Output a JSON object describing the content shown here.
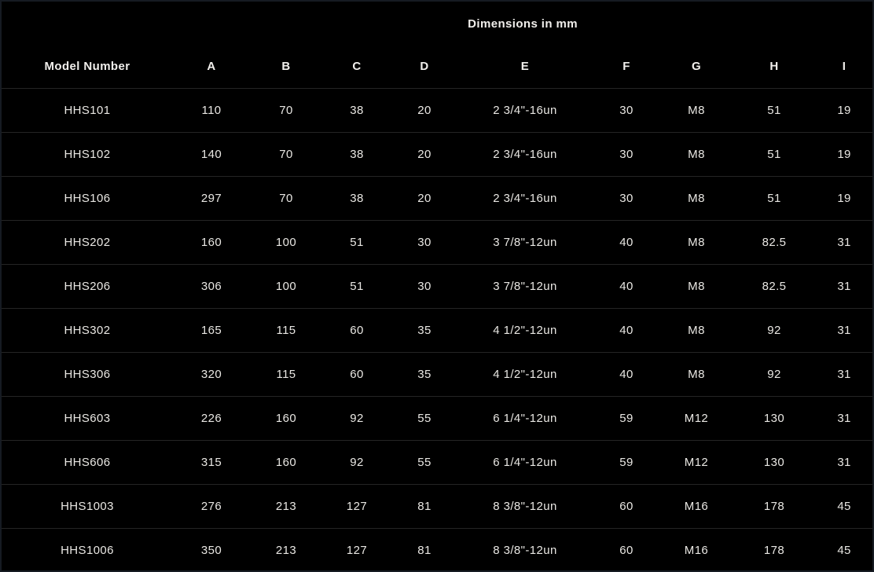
{
  "title": "Dimensions in mm",
  "table": {
    "columns": [
      "Model Number",
      "A",
      "B",
      "C",
      "D",
      "E",
      "F",
      "G",
      "H",
      "I"
    ],
    "rows": [
      [
        "HHS101",
        "110",
        "70",
        "38",
        "20",
        "2 3/4\"-16un",
        "30",
        "M8",
        "51",
        "19"
      ],
      [
        "HHS102",
        "140",
        "70",
        "38",
        "20",
        "2 3/4\"-16un",
        "30",
        "M8",
        "51",
        "19"
      ],
      [
        "HHS106",
        "297",
        "70",
        "38",
        "20",
        "2 3/4\"-16un",
        "30",
        "M8",
        "51",
        "19"
      ],
      [
        "HHS202",
        "160",
        "100",
        "51",
        "30",
        "3 7/8\"-12un",
        "40",
        "M8",
        "82.5",
        "31"
      ],
      [
        "HHS206",
        "306",
        "100",
        "51",
        "30",
        "3 7/8\"-12un",
        "40",
        "M8",
        "82.5",
        "31"
      ],
      [
        "HHS302",
        "165",
        "115",
        "60",
        "35",
        "4 1/2\"-12un",
        "40",
        "M8",
        "92",
        "31"
      ],
      [
        "HHS306",
        "320",
        "115",
        "60",
        "35",
        "4 1/2\"-12un",
        "40",
        "M8",
        "92",
        "31"
      ],
      [
        "HHS603",
        "226",
        "160",
        "92",
        "55",
        "6 1/4\"-12un",
        "59",
        "M12",
        "130",
        "31"
      ],
      [
        "HHS606",
        "315",
        "160",
        "92",
        "55",
        "6 1/4\"-12un",
        "59",
        "M12",
        "130",
        "31"
      ],
      [
        "HHS1003",
        "276",
        "213",
        "127",
        "81",
        "8 3/8\"-12un",
        "60",
        "M16",
        "178",
        "45"
      ],
      [
        "HHS1006",
        "350",
        "213",
        "127",
        "81",
        "8 3/8\"-12un",
        "60",
        "M16",
        "178",
        "45"
      ]
    ]
  },
  "colors": {
    "background": "#000000",
    "text": "#e9e7e3",
    "header_text": "#f1efec",
    "row_separator": "#242424",
    "outer_border": "#161b22"
  }
}
